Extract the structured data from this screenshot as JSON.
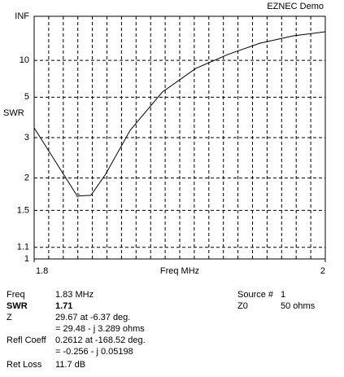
{
  "chart_data": {
    "type": "line",
    "title": "EZNEC Demo",
    "xlabel": "Freq MHz",
    "ylabel": "SWR",
    "x": [
      1.8,
      1.8296,
      1.839,
      1.849,
      1.866,
      1.888,
      1.911,
      1.933,
      1.955,
      1.978,
      2.0
    ],
    "series": [
      {
        "name": "SWR",
        "color": "#000000",
        "values": [
          3.35,
          1.7,
          1.71,
          2.07,
          3.26,
          5.4,
          8.3,
          11.7,
          17.0,
          23.8,
          30.3
        ]
      }
    ],
    "marker": {
      "x": 1.83,
      "y": 1.71,
      "color": "#808080"
    },
    "xlim": [
      1.8,
      2
    ],
    "xticks": [
      1.8,
      2
    ],
    "xminorticks": [
      1.81,
      1.82,
      1.83,
      1.84,
      1.85,
      1.86,
      1.87,
      1.88,
      1.89,
      1.9,
      1.91,
      1.92,
      1.93,
      1.94,
      1.95,
      1.96,
      1.97,
      1.98,
      1.99
    ],
    "yscale": "swr",
    "ylim": [
      1,
      null
    ],
    "yticks": [
      1,
      1.1,
      1.5,
      2,
      3,
      5,
      10,
      {
        "value": null,
        "label": "INF"
      }
    ],
    "grid": true
  },
  "readout": {
    "left": [
      {
        "label": "Freq",
        "value": "1.83 MHz"
      },
      {
        "label": "SWR",
        "value": "1.71",
        "bold": true
      },
      {
        "label": "Z",
        "value": "29.67 at -6.37 deg."
      },
      {
        "label": "",
        "value": "= 29.48 - j 3.289 ohms"
      },
      {
        "label": "Refl Coeff",
        "value": "0.2612 at -168.52 deg."
      },
      {
        "label": "",
        "value": "= -0.256 - j 0.05198"
      },
      {
        "label": "Ret Loss",
        "value": "11.7 dB"
      }
    ],
    "right": [
      {
        "label": "Source #",
        "value": "1"
      },
      {
        "label": "Z0",
        "value": "50 ohms"
      }
    ]
  }
}
